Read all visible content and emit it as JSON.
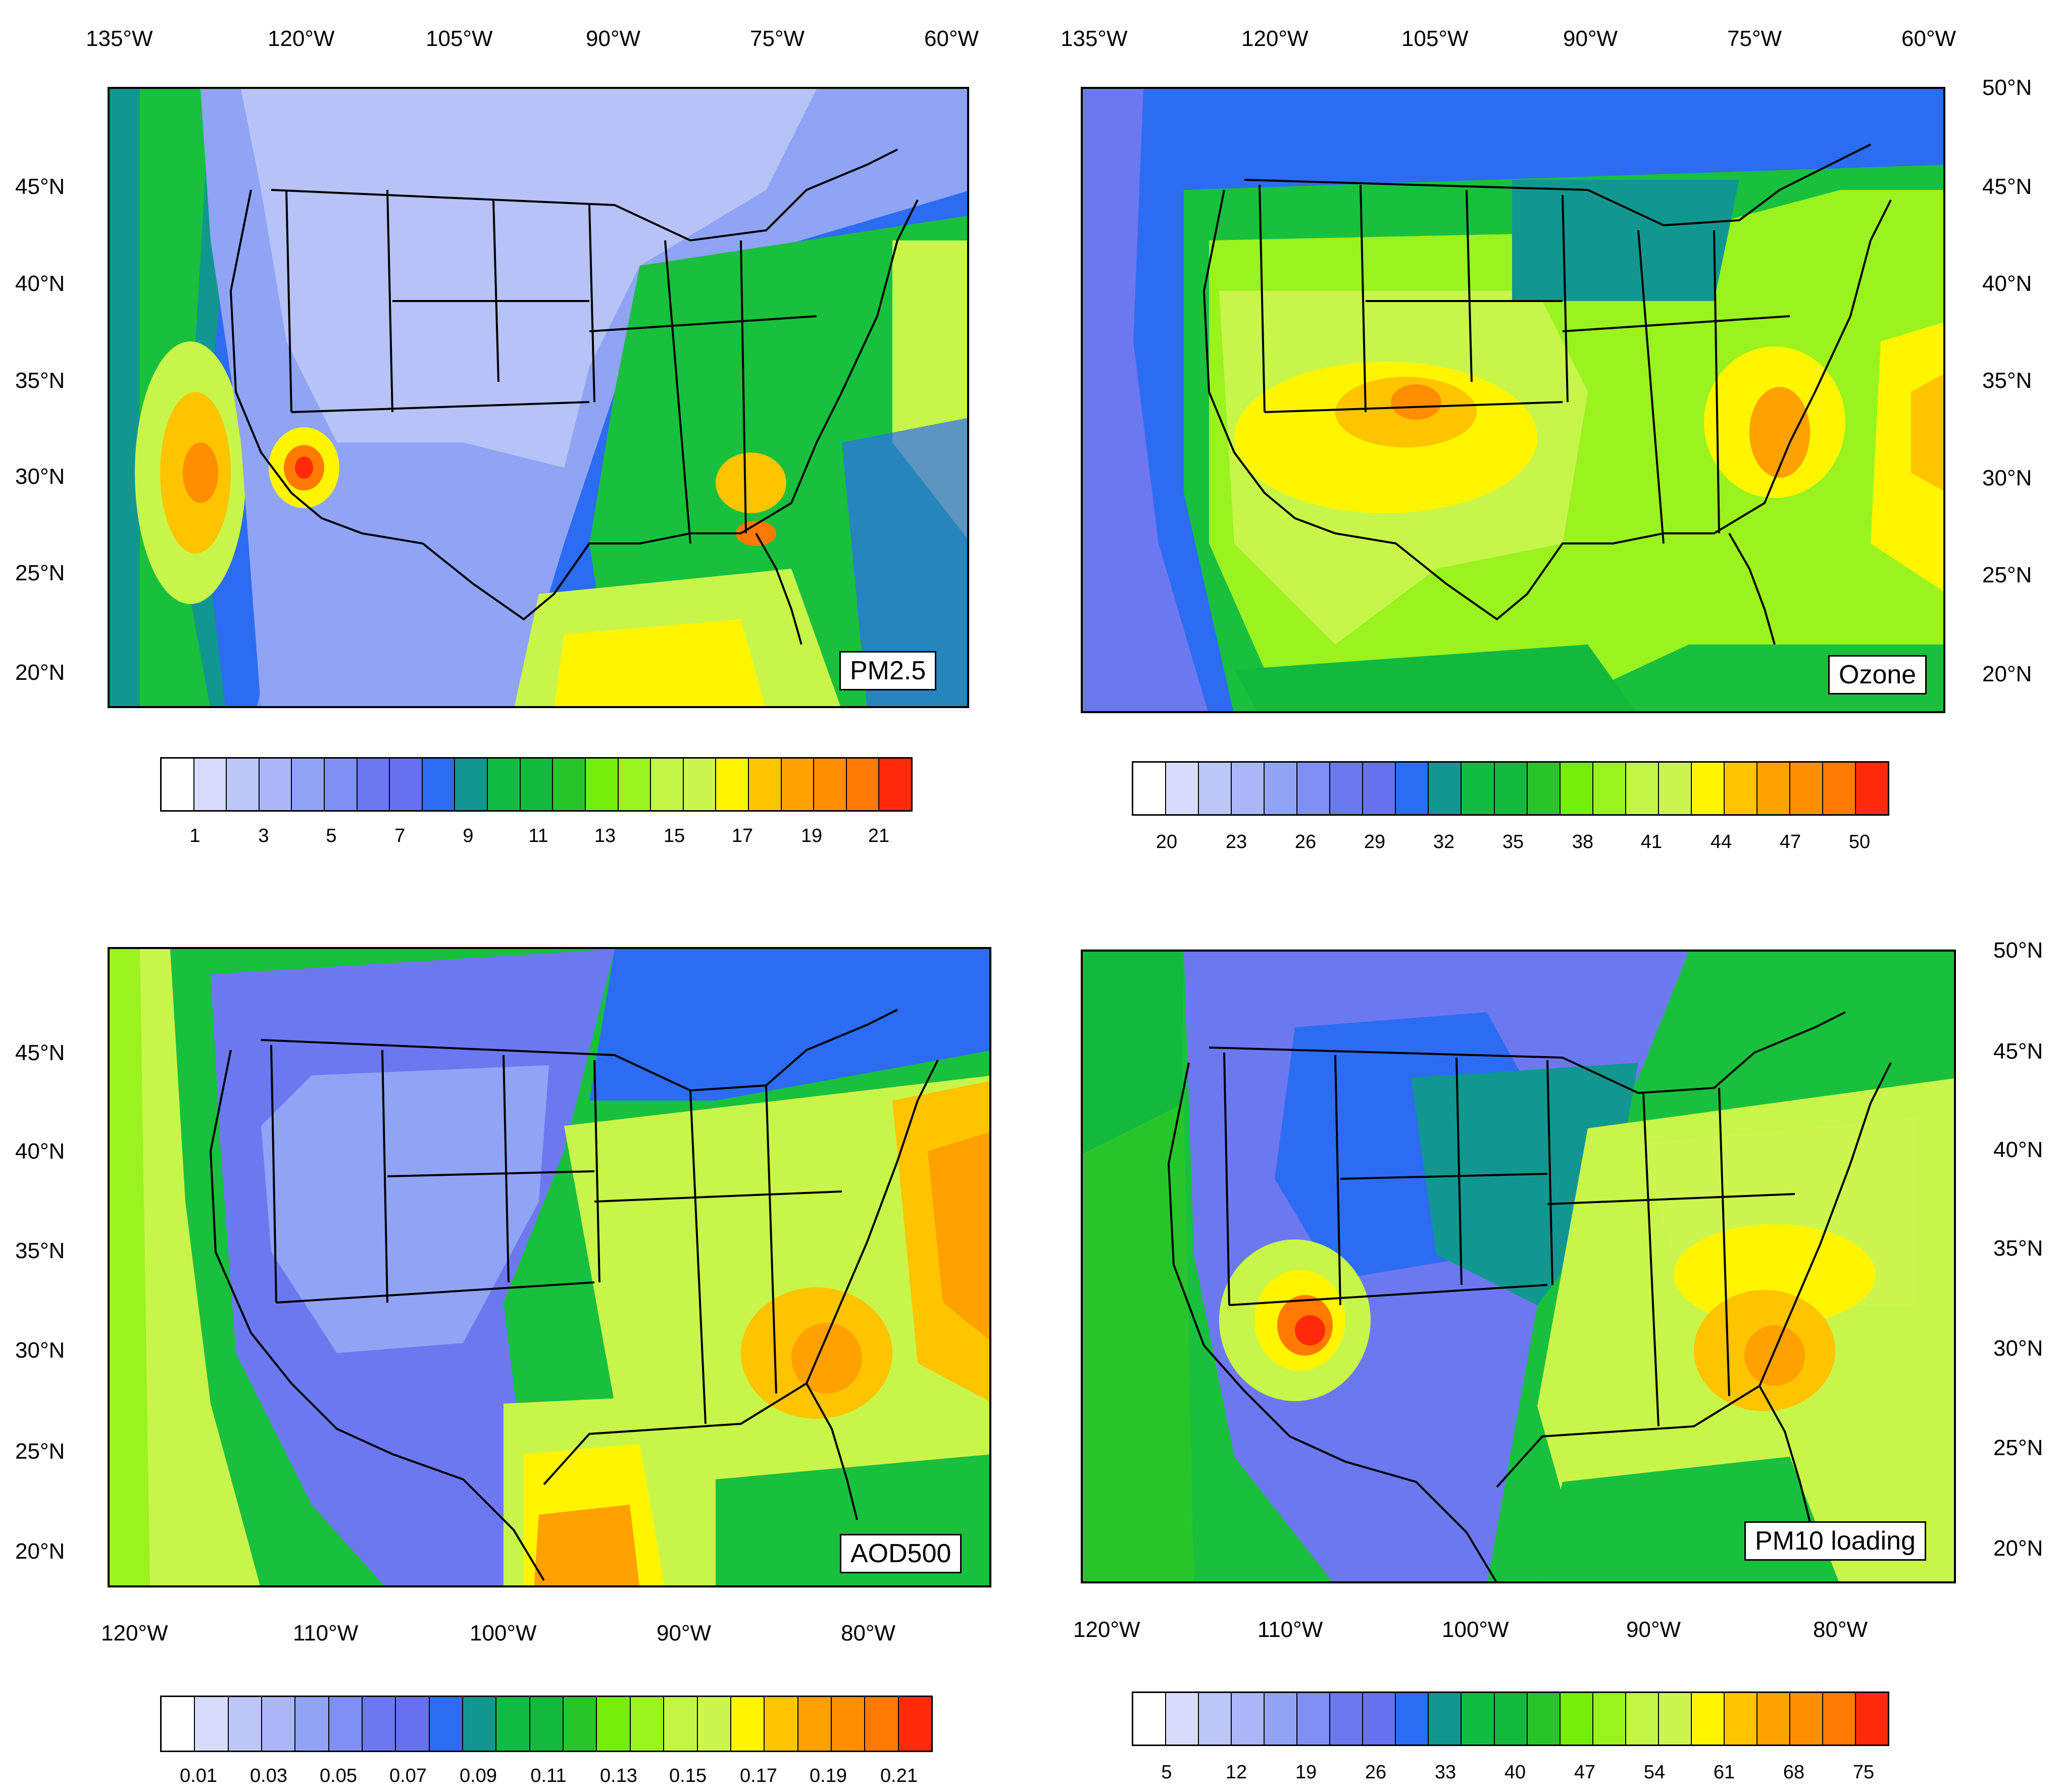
{
  "panels": [
    {
      "id": "pm25",
      "label": "PM2.5",
      "top_ticks": [
        "135°W",
        "120°W",
        "105°W",
        "90°W",
        "75°W",
        "60°W"
      ],
      "left_ticks": [
        "45°N",
        "40°N",
        "35°N",
        "30°N",
        "25°N",
        "20°N"
      ],
      "right_ticks": [],
      "bottom_ticks": [],
      "colorbar_labels": [
        "1",
        "3",
        "5",
        "7",
        "9",
        "11",
        "13",
        "15",
        "17",
        "19",
        "21"
      ]
    },
    {
      "id": "ozone",
      "label": "Ozone",
      "top_ticks": [
        "135°W",
        "120°W",
        "105°W",
        "90°W",
        "75°W",
        "60°W"
      ],
      "left_ticks": [],
      "right_ticks": [
        "50°N",
        "45°N",
        "40°N",
        "35°N",
        "30°N",
        "25°N",
        "20°N"
      ],
      "bottom_ticks": [],
      "colorbar_labels": [
        "20",
        "23",
        "26",
        "29",
        "32",
        "35",
        "38",
        "41",
        "44",
        "47",
        "50"
      ]
    },
    {
      "id": "aod500",
      "label": "AOD500",
      "top_ticks": [],
      "left_ticks": [
        "45°N",
        "40°N",
        "35°N",
        "30°N",
        "25°N",
        "20°N"
      ],
      "right_ticks": [],
      "bottom_ticks": [
        "120°W",
        "110°W",
        "100°W",
        "90°W",
        "80°W"
      ],
      "colorbar_labels": [
        "0.01",
        "0.03",
        "0.05",
        "0.07",
        "0.09",
        "0.11",
        "0.13",
        "0.15",
        "0.17",
        "0.19",
        "0.21"
      ]
    },
    {
      "id": "pm10",
      "label": "PM10 loading",
      "top_ticks": [],
      "left_ticks": [],
      "right_ticks": [
        "50°N",
        "45°N",
        "40°N",
        "35°N",
        "30°N",
        "25°N",
        "20°N"
      ],
      "bottom_ticks": [
        "120°W",
        "110°W",
        "100°W",
        "90°W",
        "80°W"
      ],
      "colorbar_labels": [
        "5",
        "12",
        "19",
        "26",
        "33",
        "40",
        "47",
        "54",
        "61",
        "68",
        "75"
      ]
    }
  ],
  "colorbar_colors": [
    "#ffffff",
    "#d6dcfa",
    "#bcc6f7",
    "#aab6f6",
    "#8fa4f5",
    "#7f8ff2",
    "#6c78f0",
    "#6771f0",
    "#2c6cf2",
    "#11978f",
    "#11bb44",
    "#12b93d",
    "#28c52a",
    "#76ee0c",
    "#9af21f",
    "#c2f544",
    "#cdf550",
    "#fff500",
    "#ffc400",
    "#ffa100",
    "#ff8f00",
    "#ff7a00",
    "#ff2a0a"
  ],
  "map_colors": {
    "ocean_blue": "#6b79f0",
    "land_lavender": "#b7c3f7",
    "green": "#18c03d",
    "yellow_green": "#c8f54a",
    "yellow": "#fff500",
    "orange": "#ffa100",
    "red": "#ff2a0a",
    "teal": "#11978f",
    "blue": "#2c6cf2"
  }
}
